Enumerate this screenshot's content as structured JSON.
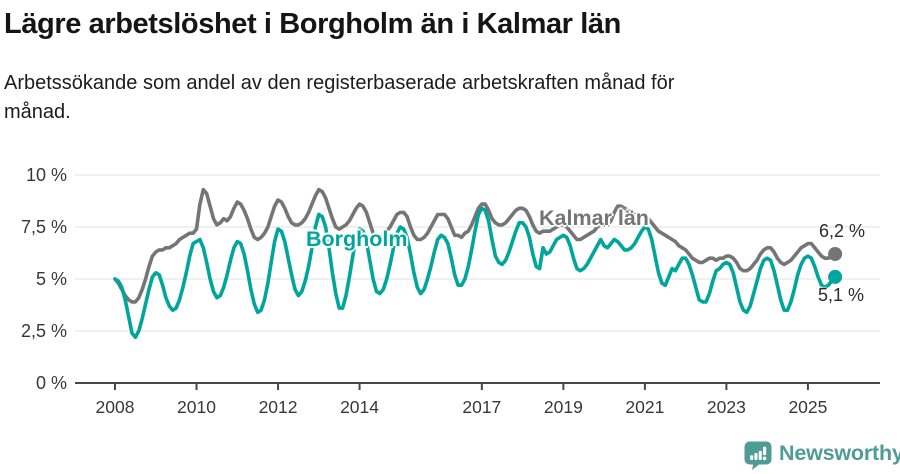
{
  "header": {
    "title": "Lägre arbetslöshet i Borgholm än i Kalmar län",
    "subtitle": "Arbetssökande som andel av den registerbaserade arbetskraften månad för månad.",
    "subtitle_lines": [
      "Arbetssökande som andel av den registerbaserade arbetskraften månad för",
      "månad."
    ]
  },
  "chart_data": {
    "type": "line",
    "title": "Lägre arbetslöshet i Borgholm än i Kalmar län",
    "subtitle": "Arbetssökande som andel av den registerbaserade arbetskraften månad för månad.",
    "unit": "%",
    "frequency": "monthly",
    "x_start": "2008-01",
    "x_end": "2025-09",
    "ylim": [
      0,
      10
    ],
    "grid": "horizontal",
    "legend_position": "inline-labels",
    "y_ticks": [
      {
        "value": 0,
        "label": "0 %"
      },
      {
        "value": 2.5,
        "label": "2,5 %"
      },
      {
        "value": 5,
        "label": "5 %"
      },
      {
        "value": 7.5,
        "label": "7,5 %"
      },
      {
        "value": 10,
        "label": "10 %"
      }
    ],
    "x_ticks": [
      {
        "year": 2008,
        "label": "2008"
      },
      {
        "year": 2010,
        "label": "2010"
      },
      {
        "year": 2012,
        "label": "2012"
      },
      {
        "year": 2014,
        "label": "2014"
      },
      {
        "year": 2017,
        "label": "2017"
      },
      {
        "year": 2019,
        "label": "2019"
      },
      {
        "year": 2021,
        "label": "2021"
      },
      {
        "year": 2023,
        "label": "2023"
      },
      {
        "year": 2025,
        "label": "2025"
      }
    ],
    "series": [
      {
        "id": "borgholm",
        "name": "Borgholm",
        "color": "#00a59c",
        "end_label": "5,1 %",
        "end_value": 5.1,
        "values": [
          5.0,
          4.9,
          4.6,
          4.0,
          3.2,
          2.4,
          2.2,
          2.5,
          3.1,
          3.8,
          4.5,
          5.1,
          5.3,
          5.2,
          4.7,
          4.1,
          3.7,
          3.5,
          3.6,
          4.0,
          4.6,
          5.3,
          6.1,
          6.7,
          6.8,
          6.9,
          6.5,
          5.8,
          5.0,
          4.4,
          4.1,
          4.2,
          4.6,
          5.2,
          5.9,
          6.5,
          6.8,
          6.7,
          6.2,
          5.4,
          4.5,
          3.8,
          3.4,
          3.5,
          4.0,
          4.8,
          5.8,
          6.8,
          7.4,
          7.3,
          6.8,
          6.0,
          5.2,
          4.5,
          4.2,
          4.4,
          4.9,
          5.6,
          6.5,
          7.5,
          8.1,
          8.0,
          7.5,
          6.5,
          5.3,
          4.3,
          3.6,
          3.6,
          4.2,
          5.1,
          6.1,
          7.0,
          7.4,
          7.3,
          6.8,
          5.9,
          5.0,
          4.4,
          4.3,
          4.5,
          5.0,
          5.7,
          6.5,
          7.2,
          7.5,
          7.4,
          7.0,
          6.2,
          5.3,
          4.6,
          4.3,
          4.5,
          5.0,
          5.6,
          6.3,
          6.9,
          7.1,
          7.0,
          6.7,
          6.0,
          5.2,
          4.7,
          4.7,
          5.0,
          5.6,
          6.4,
          7.3,
          8.1,
          8.4,
          8.3,
          7.8,
          6.9,
          6.1,
          5.8,
          5.7,
          5.9,
          6.3,
          6.8,
          7.3,
          7.7,
          7.7,
          7.5,
          7.0,
          6.2,
          5.6,
          5.5,
          6.5,
          6.2,
          6.3,
          6.6,
          6.9,
          7.0,
          7.1,
          7.0,
          6.6,
          6.0,
          5.5,
          5.4,
          5.5,
          5.7,
          6.0,
          6.3,
          6.6,
          6.9,
          6.6,
          6.5,
          6.7,
          6.9,
          6.8,
          6.6,
          6.4,
          6.4,
          6.5,
          6.7,
          7.0,
          7.3,
          7.5,
          7.4,
          6.9,
          6.1,
          5.3,
          4.8,
          4.7,
          5.1,
          5.5,
          5.4,
          5.7,
          6.0,
          6.0,
          5.7,
          5.2,
          4.6,
          4.0,
          3.9,
          3.9,
          4.3,
          4.9,
          5.4,
          5.5,
          5.7,
          5.8,
          5.7,
          5.3,
          4.6,
          3.9,
          3.5,
          3.4,
          3.7,
          4.3,
          4.9,
          5.5,
          5.9,
          6.0,
          5.9,
          5.4,
          4.7,
          4.0,
          3.5,
          3.5,
          3.9,
          4.5,
          5.2,
          5.7,
          6.0,
          6.1,
          6.0,
          5.6,
          5.1,
          4.7,
          4.6,
          4.7,
          4.9,
          5.1
        ]
      },
      {
        "id": "kalmar",
        "name": "Kalmar län",
        "color": "#757575",
        "end_label": "6,2 %",
        "end_value": 6.2,
        "values": [
          5.0,
          4.8,
          4.5,
          4.2,
          4.0,
          3.9,
          3.9,
          4.1,
          4.5,
          5.0,
          5.6,
          6.1,
          6.3,
          6.4,
          6.4,
          6.5,
          6.5,
          6.6,
          6.7,
          6.9,
          7.0,
          7.1,
          7.2,
          7.2,
          7.4,
          8.6,
          9.3,
          9.1,
          8.5,
          7.9,
          7.6,
          7.7,
          7.9,
          7.8,
          8.0,
          8.4,
          8.7,
          8.6,
          8.3,
          7.9,
          7.4,
          7.0,
          6.9,
          7.0,
          7.2,
          7.5,
          8.0,
          8.5,
          8.8,
          8.7,
          8.4,
          8.0,
          7.7,
          7.6,
          7.6,
          7.7,
          7.9,
          8.2,
          8.6,
          9.0,
          9.3,
          9.2,
          8.9,
          8.4,
          7.9,
          7.5,
          7.4,
          7.5,
          7.6,
          7.8,
          8.1,
          8.4,
          8.6,
          8.5,
          8.2,
          7.7,
          7.2,
          7.0,
          6.9,
          7.1,
          7.3,
          7.5,
          7.8,
          8.1,
          8.2,
          8.2,
          8.0,
          7.5,
          7.1,
          6.9,
          6.9,
          7.0,
          7.2,
          7.5,
          7.8,
          8.1,
          8.1,
          8.1,
          7.9,
          7.5,
          7.1,
          7.1,
          7.0,
          7.2,
          7.3,
          7.6,
          8.0,
          8.4,
          8.6,
          8.6,
          8.3,
          7.9,
          7.7,
          7.6,
          7.6,
          7.7,
          7.9,
          8.1,
          8.3,
          8.4,
          8.4,
          8.3,
          8.0,
          7.6,
          7.3,
          7.2,
          7.3,
          7.3,
          7.3,
          7.4,
          7.5,
          7.6,
          7.6,
          7.5,
          7.3,
          7.1,
          6.9,
          6.9,
          7.0,
          7.1,
          7.2,
          7.3,
          7.5,
          7.6,
          7.6,
          7.6,
          7.8,
          8.2,
          8.5,
          8.5,
          8.4,
          8.3,
          8.2,
          8.1,
          8.0,
          8.0,
          8.0,
          7.9,
          7.7,
          7.5,
          7.3,
          7.2,
          7.1,
          7.0,
          6.9,
          6.8,
          6.6,
          6.5,
          6.4,
          6.2,
          6.0,
          5.9,
          5.8,
          5.8,
          5.9,
          6.0,
          6.0,
          5.9,
          6.0,
          6.0,
          6.1,
          6.1,
          6.0,
          5.8,
          5.5,
          5.4,
          5.4,
          5.5,
          5.7,
          5.9,
          6.2,
          6.4,
          6.5,
          6.5,
          6.3,
          6.0,
          5.8,
          5.7,
          5.8,
          5.9,
          6.1,
          6.3,
          6.5,
          6.6,
          6.7,
          6.7,
          6.5,
          6.3,
          6.1,
          6.0,
          6.0,
          6.1,
          6.2
        ]
      }
    ]
  },
  "footer": {
    "brand": "Newsworthy",
    "brand_color": "#4f9b95",
    "logo_icon": "bar-chart-speech-bubble-icon"
  }
}
